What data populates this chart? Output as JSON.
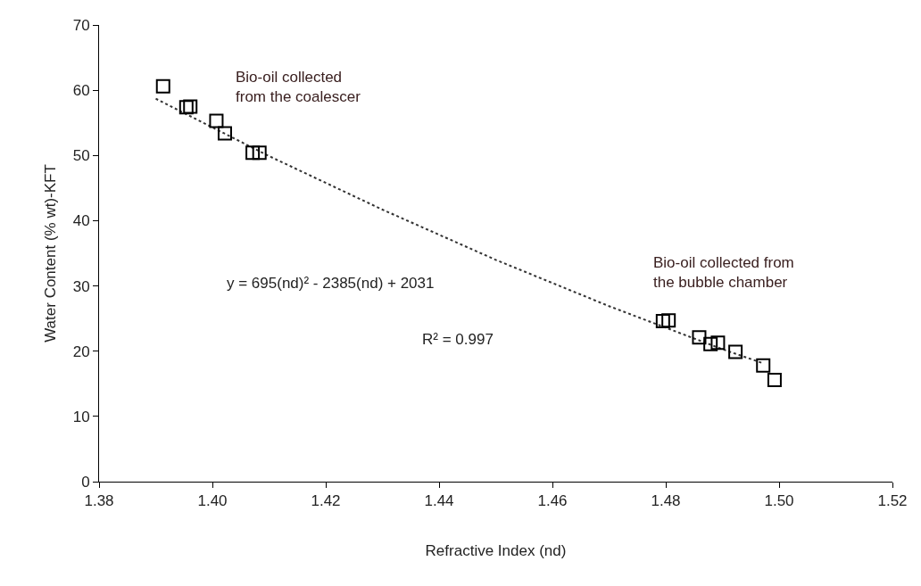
{
  "chart_data": {
    "type": "scatter",
    "xlabel": "Refractive Index (nd)",
    "ylabel": "Water Content (% wt)-KFT",
    "xlim": [
      1.38,
      1.52
    ],
    "xticks": [
      {
        "value": 1.38,
        "label": "1.38"
      },
      {
        "value": 1.4,
        "label": "1.40"
      },
      {
        "value": 1.42,
        "label": "1.42"
      },
      {
        "value": 1.44,
        "label": "1.44"
      },
      {
        "value": 1.46,
        "label": "1.46"
      },
      {
        "value": 1.48,
        "label": "1.48"
      },
      {
        "value": 1.5,
        "label": "1.50"
      },
      {
        "value": 1.52,
        "label": "1.52"
      }
    ],
    "ylim": [
      0,
      70
    ],
    "yticks": [
      0,
      10,
      20,
      30,
      40,
      50,
      60,
      70
    ],
    "grid": false,
    "legend": false,
    "marker": "square",
    "series": [
      {
        "color": "#000000",
        "x": [
          1.3913,
          1.3954,
          1.3961,
          1.4007,
          1.4022,
          1.4071,
          1.4083,
          1.4795,
          1.4805,
          1.4859,
          1.4879,
          1.4892,
          1.4923,
          1.4972,
          1.4992
        ],
        "values": [
          60.6,
          57.4,
          57.5,
          55.3,
          53.4,
          50.4,
          50.4,
          24.6,
          24.7,
          22.1,
          21.1,
          21.3,
          19.9,
          17.8,
          15.6
        ]
      },
      {
        "type": "line",
        "color": "#333333",
        "line_style": "dotted",
        "marker": "none",
        "x": [
          1.39,
          1.41,
          1.43,
          1.45,
          1.47,
          1.49,
          1.497
        ],
        "values": [
          58.7,
          49.9,
          41.7,
          34.0,
          26.9,
          20.3,
          18.2
        ]
      }
    ],
    "annotations": [
      "Bio-oil collected\nfrom the coalescer",
      "Bio-oil collected from\nthe bubble chamber",
      "y = 695(nd)² - 2385(nd) + 2031",
      "R² = 0.997"
    ]
  }
}
